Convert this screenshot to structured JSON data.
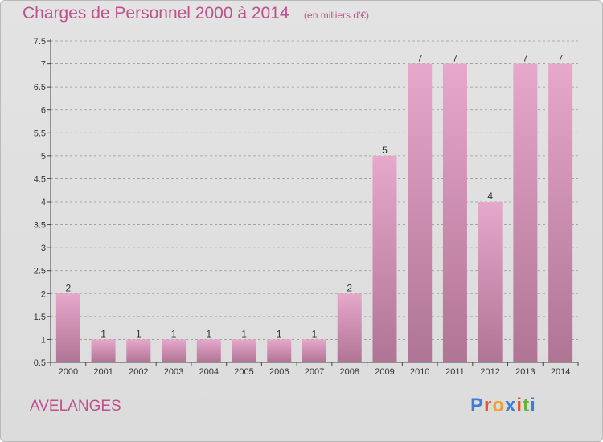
{
  "title": "Charges de Personnel 2000 à 2014",
  "subtitle": "(en milliers d'€)",
  "commune": "AVELANGES",
  "logo": {
    "text": "Proxiti",
    "colors": [
      "#3a7fd6",
      "#e8542a",
      "#f0a030",
      "#3a7fd6",
      "#e8542a",
      "#65b33a",
      "#3a7fd6"
    ]
  },
  "colors": {
    "bar_top": "#e6a8cb",
    "bar_bottom": "#b07494",
    "text": "#c0508d",
    "axis": "#444444",
    "grid": "#9a9a9a"
  },
  "chart_data": {
    "type": "bar",
    "title": "Charges de Personnel 2000 à 2014",
    "subtitle": "(en milliers d'€)",
    "categories": [
      "2000",
      "2001",
      "2002",
      "2003",
      "2004",
      "2005",
      "2006",
      "2007",
      "2008",
      "2009",
      "2010",
      "2011",
      "2012",
      "2013",
      "2014"
    ],
    "values": [
      2,
      1,
      1,
      1,
      1,
      1,
      1,
      1,
      2,
      5,
      7,
      7,
      4,
      7,
      7
    ],
    "ylim": [
      0.5,
      7.5
    ],
    "yticks": [
      "0.5",
      "1",
      "1.5",
      "2",
      "2.5",
      "3",
      "3.5",
      "4",
      "4.5",
      "5",
      "5.5",
      "6",
      "6.5",
      "7",
      "7.5"
    ],
    "grid": "dashed horizontal",
    "data_labels": true
  }
}
